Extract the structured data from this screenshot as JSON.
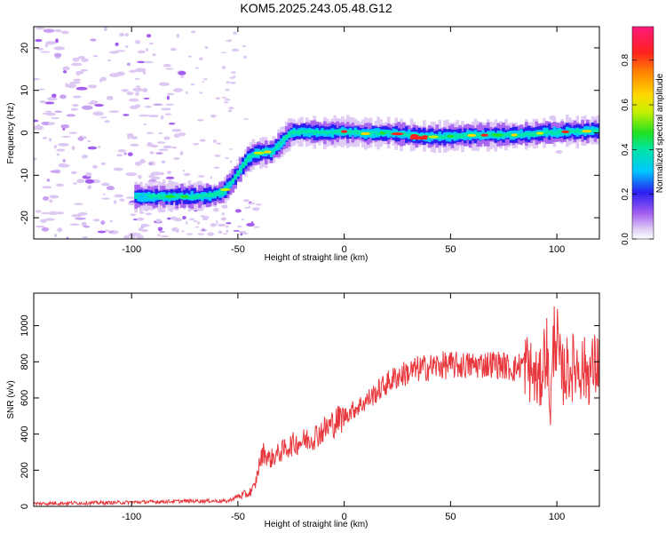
{
  "title": "KOM5.2025.243.05.48.G12",
  "chart_data": [
    {
      "type": "heatmap",
      "xlabel": "Height of straight line (km)",
      "ylabel": "Frequency (Hz)",
      "xlim": [
        -146,
        120
      ],
      "ylim": [
        -25,
        25
      ],
      "xticks": [
        -100,
        -50,
        0,
        50,
        100
      ],
      "yticks": [
        -20,
        -10,
        0,
        10,
        20
      ],
      "colorbar": {
        "label": "Normalized spectral amplitude",
        "range": [
          0,
          0.95
        ],
        "ticks": [
          0.0,
          0.2,
          0.4,
          0.6,
          0.8
        ]
      },
      "ridge": {
        "x": [
          -98,
          -90,
          -80,
          -70,
          -62,
          -57,
          -52,
          -48,
          -45,
          -42,
          -38,
          -34,
          -30,
          -25,
          -20,
          -10,
          0,
          10,
          20,
          30,
          40,
          50,
          60,
          70,
          80,
          90,
          95,
          100,
          105,
          110,
          120
        ],
        "y": [
          -15,
          -15,
          -15,
          -15,
          -14.8,
          -14,
          -11,
          -8,
          -6,
          -5,
          -4.5,
          -4.5,
          -2.5,
          0,
          0.3,
          0,
          0.3,
          -0.2,
          0,
          -0.5,
          -1,
          -0.8,
          -0.6,
          -0.5,
          -0.5,
          -0.3,
          0.2,
          0,
          0.3,
          0.3,
          0.5
        ]
      }
    },
    {
      "type": "line",
      "xlabel": "Height of straight line (km)",
      "ylabel": "SNR (v/v)",
      "xlim": [
        -146,
        120
      ],
      "ylim": [
        0,
        1180
      ],
      "xticks": [
        -100,
        -50,
        0,
        50,
        100
      ],
      "yticks": [
        0,
        200,
        400,
        600,
        800,
        1000
      ],
      "series": [
        {
          "color": "#e8383d",
          "x": [
            -146,
            -130,
            -110,
            -90,
            -70,
            -60,
            -55,
            -50,
            -45,
            -42,
            -40,
            -38,
            -35,
            -30,
            -25,
            -20,
            -15,
            -10,
            -5,
            0,
            5,
            10,
            15,
            20,
            25,
            30,
            35,
            40,
            45,
            50,
            55,
            60,
            65,
            70,
            75,
            80,
            85,
            88,
            92,
            95,
            97,
            99,
            102,
            105,
            110,
            115,
            120
          ],
          "y": [
            15,
            18,
            20,
            25,
            30,
            30,
            28,
            55,
            70,
            110,
            230,
            300,
            260,
            300,
            340,
            360,
            380,
            420,
            460,
            500,
            540,
            580,
            630,
            680,
            720,
            740,
            760,
            770,
            780,
            780,
            780,
            780,
            785,
            790,
            780,
            760,
            800,
            740,
            680,
            900,
            540,
            1010,
            720,
            760,
            780,
            740,
            800
          ]
        }
      ]
    }
  ]
}
